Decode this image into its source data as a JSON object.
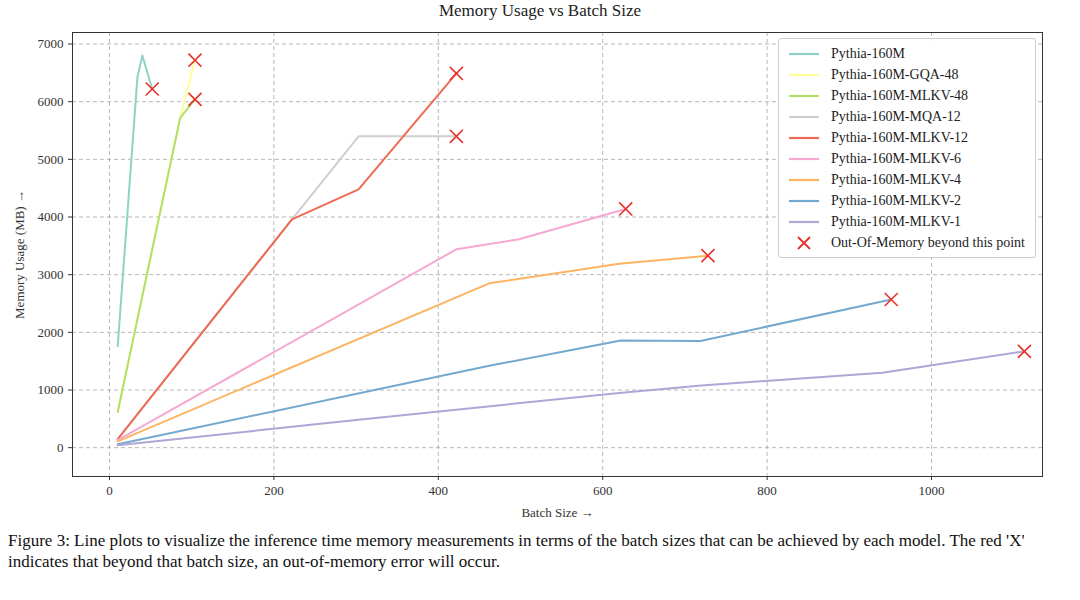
{
  "chart_data": {
    "type": "line",
    "title": "Memory Usage vs Batch Size",
    "x_label": "Batch Size",
    "y_label": "Memory Usage (MB)",
    "caption": "Figure 3: Line plots to visualize the inference time memory measurements in terms of the batch sizes that can be achieved by each model. The red 'X' indicates that beyond that batch size, an out-of-memory error will occur.",
    "xlim": [
      -45,
      1135
    ],
    "ylim": [
      -500,
      7200
    ],
    "xticks": [
      0,
      200,
      400,
      600,
      800,
      1000
    ],
    "yticks": [
      0,
      1000,
      2000,
      3000,
      4000,
      5000,
      6000,
      7000
    ],
    "grid": true,
    "legend": "upper right",
    "series": [
      {
        "name": "Pythia-160M",
        "color": "#8dd3c7",
        "type": "line",
        "x": [
          10,
          34,
          40,
          52
        ],
        "values": [
          1760,
          6430,
          6800,
          6220
        ]
      },
      {
        "name": "Pythia-160M-GQA-48",
        "color": "#ffff99",
        "type": "line",
        "x": [
          10,
          86,
          104
        ],
        "values": [
          620,
          5720,
          6720
        ]
      },
      {
        "name": "Pythia-160M-MLKV-48",
        "color": "#b3de69",
        "type": "line",
        "x": [
          10,
          86,
          104
        ],
        "values": [
          620,
          5720,
          6040
        ]
      },
      {
        "name": "Pythia-160M-MQA-12",
        "color": "#cfcfcf",
        "type": "line",
        "x": [
          10,
          222,
          303,
          422
        ],
        "values": [
          150,
          3960,
          5400,
          5400
        ]
      },
      {
        "name": "Pythia-160M-MLKV-12",
        "color": "#ef6a55",
        "type": "line",
        "x": [
          10,
          222,
          303,
          422
        ],
        "values": [
          150,
          3960,
          4480,
          6490
        ]
      },
      {
        "name": "Pythia-160M-MLKV-6",
        "color": "#f5a8d2",
        "type": "line",
        "x": [
          10,
          422,
          497,
          628
        ],
        "values": [
          130,
          3440,
          3610,
          4140
        ]
      },
      {
        "name": "Pythia-160M-MLKV-4",
        "color": "#fdb462",
        "type": "line",
        "x": [
          10,
          462,
          620,
          728
        ],
        "values": [
          110,
          2850,
          3190,
          3330
        ]
      },
      {
        "name": "Pythia-160M-MLKV-2",
        "color": "#74a9cf",
        "type": "line",
        "x": [
          10,
          462,
          622,
          719,
          951
        ],
        "values": [
          60,
          1420,
          1860,
          1850,
          2570
        ]
      },
      {
        "name": "Pythia-160M-MLKV-1",
        "color": "#b0a6d6",
        "type": "line",
        "x": [
          10,
          300,
          620,
          720,
          940,
          1113
        ],
        "values": [
          40,
          480,
          950,
          1080,
          1300,
          1670
        ]
      },
      {
        "name": "Out-Of-Memory beyond this point",
        "color": "#e8302a",
        "type": "scatter",
        "marker": "x",
        "x": [
          52,
          104,
          104,
          422,
          422,
          628,
          728,
          951,
          1113
        ],
        "values": [
          6220,
          6720,
          6040,
          5400,
          6490,
          4140,
          3330,
          2570,
          1670
        ]
      }
    ]
  }
}
